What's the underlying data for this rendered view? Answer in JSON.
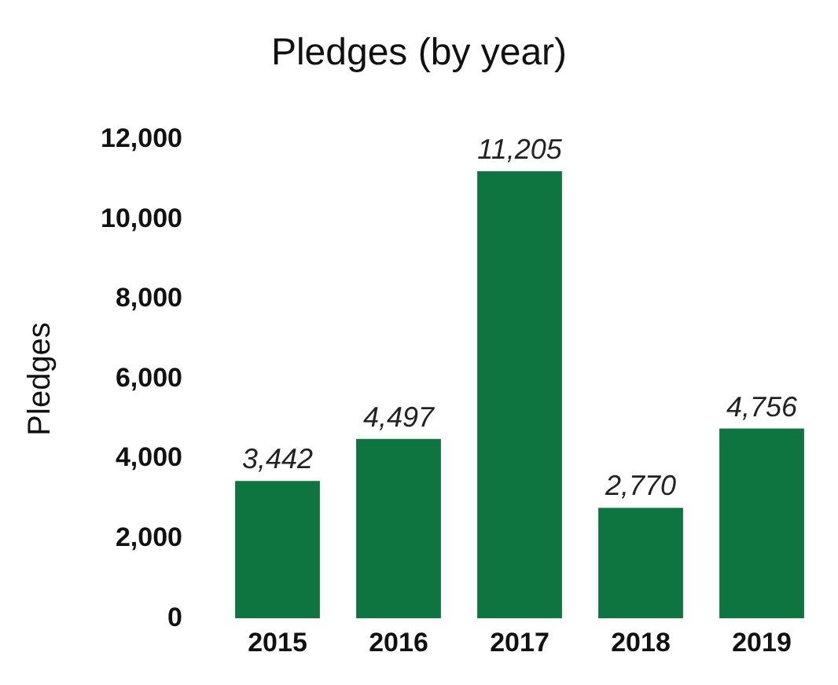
{
  "chart_data": {
    "type": "bar",
    "title": "Pledges (by year)",
    "ylabel": "Pledges",
    "categories": [
      "2015",
      "2016",
      "2017",
      "2018",
      "2019"
    ],
    "values": [
      3442,
      4497,
      11205,
      2770,
      4756
    ],
    "color": "#0e7540",
    "value_labels": [
      "3,442",
      "4,497",
      "11,205",
      "2,770",
      "4,756"
    ],
    "ylim": [
      0,
      12000
    ],
    "yticks": [
      0,
      {
        "value": 2000,
        "label": "2,000"
      },
      {
        "value": 4000,
        "label": "4,000"
      },
      {
        "value": 6000,
        "label": "6,000"
      },
      {
        "value": 8000,
        "label": "8,000"
      },
      {
        "value": 10000,
        "label": "10,000"
      },
      {
        "value": 12000,
        "label": "12,000"
      }
    ],
    "grid": false,
    "legend": false
  }
}
